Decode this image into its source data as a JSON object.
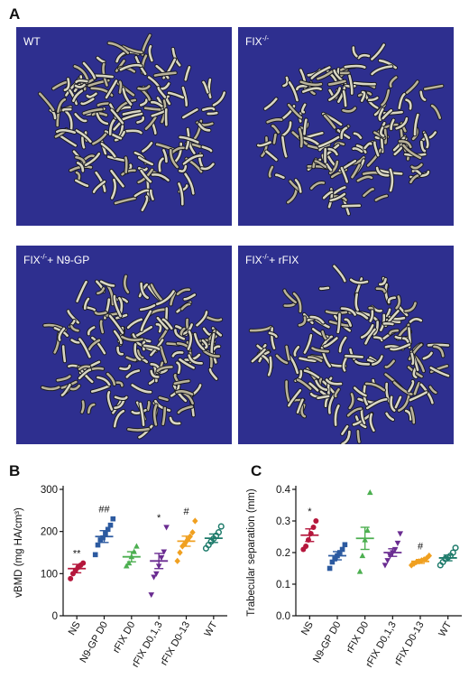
{
  "panel_a": {
    "letter": "A",
    "images": [
      {
        "label_base": "WT",
        "label_sup": "",
        "label_tail": ""
      },
      {
        "label_base": "FIX",
        "label_sup": "-/-",
        "label_tail": ""
      },
      {
        "label_base": "FIX",
        "label_sup": "-/-",
        "label_tail": "+ N9-GP"
      },
      {
        "label_base": "FIX",
        "label_sup": "-/-",
        "label_tail": "+ rFIX"
      }
    ]
  },
  "chart_data": [
    {
      "panel": "B",
      "type": "scatter",
      "ylabel": "vBMD (mg HA/cm³)",
      "ylim": [
        0,
        300
      ],
      "yticks": [
        "0",
        "100",
        "200",
        "300"
      ],
      "categories": [
        "NS",
        "N9-GP D0",
        "rFIX D0",
        "rFIX D0,1,3",
        "rFIX D0-13",
        "WT"
      ],
      "markers": [
        "circle",
        "square",
        "triangle",
        "triangle-down",
        "diamond",
        "circle-open"
      ],
      "colors": [
        "#b5173c",
        "#2c5aa0",
        "#4caf50",
        "#6a2c91",
        "#f0a020",
        "#1e7b6b"
      ],
      "means": [
        112,
        188,
        140,
        130,
        177,
        184
      ],
      "sems": [
        10,
        14,
        12,
        18,
        12,
        10
      ],
      "points": [
        [
          88,
          100,
          108,
          115,
          120,
          125
        ],
        [
          145,
          168,
          180,
          185,
          195,
          205,
          215,
          230
        ],
        [
          118,
          125,
          140,
          152,
          165
        ],
        [
          50,
          92,
          100,
          118,
          138,
          152,
          210
        ],
        [
          130,
          150,
          165,
          172,
          180,
          188,
          198,
          225
        ],
        [
          160,
          168,
          176,
          183,
          190,
          198,
          212
        ]
      ],
      "annotations": [
        "**",
        "##",
        "",
        "*",
        "#",
        ""
      ]
    },
    {
      "panel": "C",
      "type": "scatter",
      "ylabel": "Trabecular separation (mm)",
      "ylim": [
        0,
        0.4
      ],
      "yticks": [
        "0.0",
        "0.1",
        "0.2",
        "0.3",
        "0.4"
      ],
      "categories": [
        "NS",
        "N9-GP D0",
        "rFIX D0",
        "rFIX D0,1,3",
        "rFIX D0-13",
        "WT"
      ],
      "markers": [
        "circle",
        "square",
        "triangle",
        "triangle-down",
        "diamond",
        "circle-open"
      ],
      "colors": [
        "#b5173c",
        "#2c5aa0",
        "#4caf50",
        "#6a2c91",
        "#f0a020",
        "#1e7b6b"
      ],
      "means": [
        0.255,
        0.19,
        0.245,
        0.2,
        0.172,
        0.183
      ],
      "sems": [
        0.02,
        0.013,
        0.035,
        0.012,
        0.006,
        0.009
      ],
      "points": [
        [
          0.21,
          0.22,
          0.24,
          0.26,
          0.28,
          0.3
        ],
        [
          0.15,
          0.17,
          0.18,
          0.19,
          0.2,
          0.21,
          0.225
        ],
        [
          0.14,
          0.19,
          0.24,
          0.27,
          0.39
        ],
        [
          0.16,
          0.175,
          0.19,
          0.2,
          0.21,
          0.23,
          0.26
        ],
        [
          0.16,
          0.165,
          0.17,
          0.172,
          0.175,
          0.178,
          0.182,
          0.19
        ],
        [
          0.16,
          0.17,
          0.18,
          0.185,
          0.19,
          0.2,
          0.215
        ]
      ],
      "annotations": [
        "*",
        "",
        "",
        "",
        "#",
        ""
      ]
    }
  ]
}
